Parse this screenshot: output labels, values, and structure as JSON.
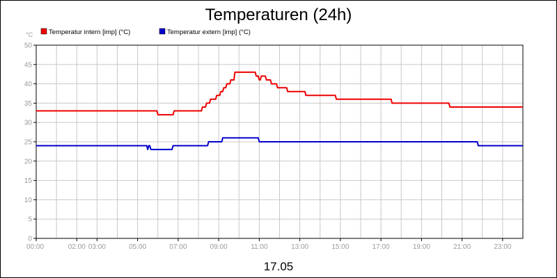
{
  "chart_data": {
    "type": "line",
    "title": "Temperaturen (24h)",
    "xlabel": "17.05",
    "ylabel": "°C",
    "xlim": [
      0,
      24
    ],
    "ylim": [
      0,
      50
    ],
    "grid": true,
    "legend_position": "top-left",
    "y_ticks": [
      {
        "value": 0,
        "label": "0"
      },
      {
        "value": 5,
        "label": "5"
      },
      {
        "value": 10,
        "label": "10"
      },
      {
        "value": 15,
        "label": "15"
      },
      {
        "value": 20,
        "label": "20"
      },
      {
        "value": 25,
        "label": "25"
      },
      {
        "value": 30,
        "label": "30"
      },
      {
        "value": 35,
        "label": "35"
      },
      {
        "value": 40,
        "label": "40"
      },
      {
        "value": 45,
        "label": "45"
      },
      {
        "value": 50,
        "label": "50"
      }
    ],
    "x_ticks": [
      {
        "value": 0,
        "label": "00:00"
      },
      {
        "value": 2,
        "label": "02:00"
      },
      {
        "value": 3,
        "label": "03:00"
      },
      {
        "value": 5,
        "label": "05:00"
      },
      {
        "value": 7,
        "label": "07:00"
      },
      {
        "value": 9,
        "label": "09:00"
      },
      {
        "value": 11,
        "label": "11:00"
      },
      {
        "value": 13,
        "label": "13:00"
      },
      {
        "value": 15,
        "label": "15:00"
      },
      {
        "value": 17,
        "label": "17:00"
      },
      {
        "value": 19,
        "label": "19:00"
      },
      {
        "value": 21,
        "label": "21:00"
      },
      {
        "value": 23,
        "label": "23:00"
      }
    ],
    "series": [
      {
        "name": "Temperatur intern [imp] (°C)",
        "color": "#ee0000",
        "x": [
          0,
          5.95,
          6.0,
          6.75,
          6.8,
          8.15,
          8.2,
          8.35,
          8.4,
          8.55,
          8.6,
          8.85,
          8.9,
          9.05,
          9.1,
          9.2,
          9.25,
          9.35,
          9.4,
          9.55,
          9.6,
          9.75,
          9.8,
          10.8,
          10.85,
          10.95,
          11.0,
          11.05,
          11.1,
          11.3,
          11.35,
          11.55,
          11.6,
          11.85,
          11.9,
          12.35,
          12.4,
          13.25,
          13.3,
          14.75,
          14.8,
          17.5,
          17.55,
          20.35,
          20.4,
          24.0
        ],
        "y": [
          33,
          33,
          32,
          32,
          33,
          33,
          34,
          34,
          35,
          35,
          36,
          36,
          37,
          37,
          38,
          38,
          39,
          39,
          40,
          40,
          41,
          41,
          43,
          43,
          42,
          42,
          41,
          41,
          42,
          42,
          41,
          41,
          40,
          40,
          39,
          39,
          38,
          38,
          37,
          37,
          36,
          36,
          35,
          35,
          34,
          34
        ]
      },
      {
        "name": "Temperatur extern [imp] (°C)",
        "color": "#0000cc",
        "x": [
          0,
          5.45,
          5.5,
          5.55,
          5.6,
          5.65,
          5.7,
          6.7,
          6.75,
          8.45,
          8.5,
          9.15,
          9.2,
          10.95,
          11.0,
          21.75,
          21.8,
          24.0
        ],
        "y": [
          24,
          24,
          23,
          24,
          24,
          23,
          23,
          23,
          24,
          24,
          25,
          25,
          26,
          26,
          25,
          25,
          24,
          24
        ]
      }
    ]
  }
}
